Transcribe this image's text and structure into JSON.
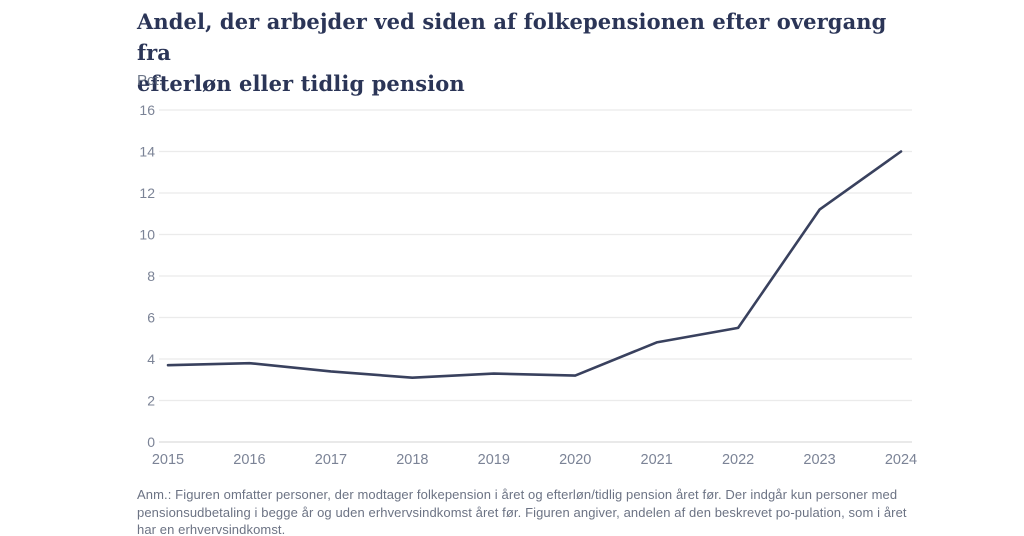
{
  "title": {
    "line1": "Andel, der arbejder ved siden af folkepensionen efter overgang fra",
    "line2": "efterløn eller tidlig pension"
  },
  "y_axis_unit": "Pct.",
  "footnote": "Anm.: Figuren omfatter personer, der modtager folkepension i året og efterløn/tidlig pension året før. Der indgår kun personer med pensionsudbetaling i begge år og uden erhvervsindkomst året før. Figuren angiver, andelen af den beskrevet po-pulation, som i året har en erhvervsindkomst.",
  "chart_data": {
    "type": "line",
    "title": "Andel, der arbejder ved siden af folkepensionen efter overgang fra efterløn eller tidlig pension",
    "xlabel": "",
    "ylabel": "Pct.",
    "categories": [
      "2015",
      "2016",
      "2017",
      "2018",
      "2019",
      "2020",
      "2021",
      "2022",
      "2023",
      "2024"
    ],
    "values": [
      3.7,
      3.8,
      3.4,
      3.1,
      3.3,
      3.2,
      4.8,
      5.5,
      11.2,
      14.0
    ],
    "y_ticks": [
      0,
      2,
      4,
      6,
      8,
      10,
      12,
      14,
      16
    ],
    "ylim": [
      0,
      16
    ],
    "grid": "horizontal-only",
    "legend": "none",
    "colors": {
      "line": "#39415e",
      "grid": "#ebebeb",
      "zero_axis": "#dcdcdc",
      "tick": "#7b8396",
      "title": "#2b3557",
      "footnote": "#6c7384",
      "background": "#ffffff"
    }
  }
}
